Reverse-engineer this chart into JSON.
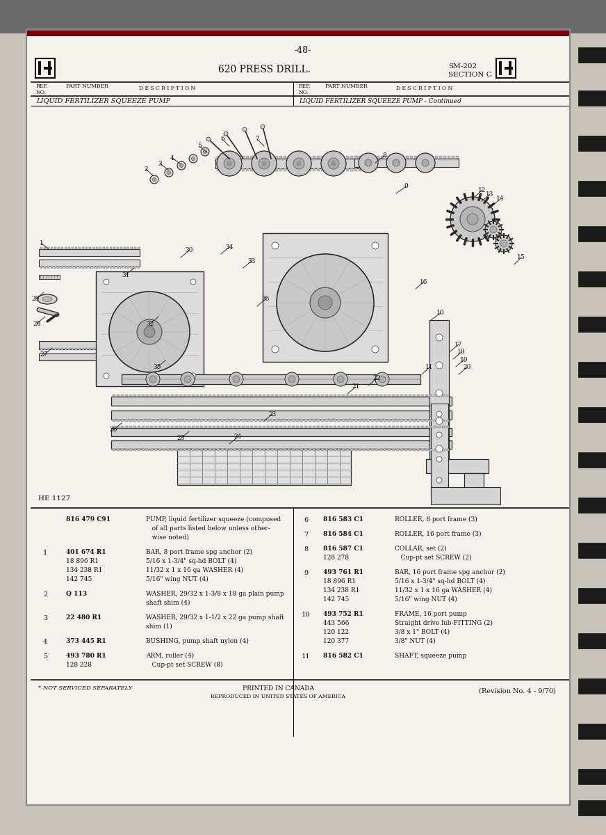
{
  "page_number": "-48-",
  "title": "620 PRESS DRILL.",
  "manual_ref_line1": "SM-202",
  "manual_ref_line2": "SECTION C",
  "section1_title": "LIQUID FERTILIZER SQUEEZE PUMP",
  "section2_title": "LIQUID FERTILIZER SQUEEZE PUMP - Continued",
  "diagram_label": "HE 1127",
  "parts_left": [
    {
      "ref": "",
      "part": "816 479 C91",
      "desc": "PUMP, liquid fertilizer squeeze (composed\n   of all parts listed below unless other-\n   wise noted)"
    },
    {
      "ref": "1",
      "part": "401 674 R1\n18 896 R1\n134 238 R1\n142 745",
      "desc": "BAR, 8 port frame spg anchor (2)\n5/16 x 1-3/4\" sq-hd BOLT (4)\n11/32 x 1 x 16 ga WASHER (4)\n5/16\" wing NUT (4)"
    },
    {
      "ref": "2",
      "part": "Q 113",
      "desc": "WASHER, 29/32 x 1-3/8 x 18 ga plain pump\nshaft shim (4)"
    },
    {
      "ref": "3",
      "part": "22 480 R1",
      "desc": "WASHER, 29/32 x 1-1/2 x 22 ga pump shaft\nshim (1)"
    },
    {
      "ref": "4",
      "part": "373 445 R1",
      "desc": "BUSHING, pump shaft nylon (4)"
    },
    {
      "ref": "5",
      "part": "493 780 R1\n128 228",
      "desc": "ARM, roller (4)\n   Cup-pt set SCREW (8)"
    }
  ],
  "parts_right": [
    {
      "ref": "6",
      "part": "816 583 C1",
      "desc": "ROLLER, 8 port frame (3)"
    },
    {
      "ref": "7",
      "part": "816 584 C1",
      "desc": "ROLLER, 16 port frame (3)"
    },
    {
      "ref": "8",
      "part": "816 587 C1\n128 278",
      "desc": "COLLAR, set (2)\n   Cup-pt set SCREW (2)"
    },
    {
      "ref": "9",
      "part": "493 761 R1\n18 896 R1\n134 238 R1\n142 745",
      "desc": "BAR, 16 port frame spg anchor (2)\n5/16 x 1-3/4\" sq-hd BOLT (4)\n11/32 x 1 x 16 ga WASHER (4)\n5/16\" wing NUT (4)"
    },
    {
      "ref": "10",
      "part": "493 752 R1\n443 566\n120 122\n120 377",
      "desc": "FRAME, 16 port pump\nStraight drive lub-FITTING (2)\n3/8 x 1\" BOLT (4)\n3/8\" NUT (4)"
    },
    {
      "ref": "11",
      "part": "816 582 C1",
      "desc": "SHAFT, squeeze pump"
    }
  ],
  "footer_left": "* NOT SERVICED SEPARATELY",
  "footer_center1": "PRINTED IN CANADA",
  "footer_center2": "REPRODUCED IN UNITED STATES OF AMERICA",
  "footer_right": "(Revision No. 4 - 9/70)",
  "bg_color": "#c8c4bc",
  "page_bg": "#f5f2ee",
  "text_color": "#1a1a1a",
  "border_color": "#2a2a2a",
  "header_bar_color": "#7a0010",
  "table_line_color": "#333333"
}
